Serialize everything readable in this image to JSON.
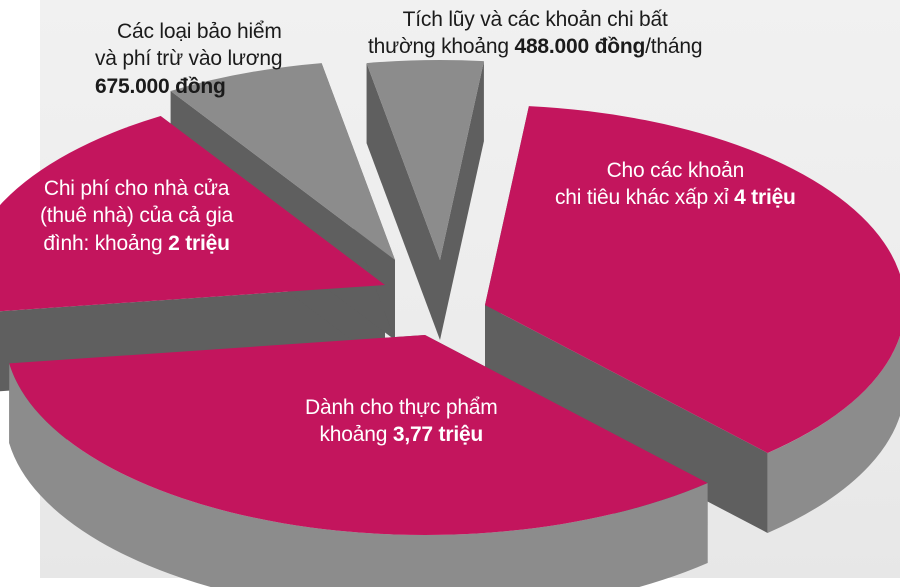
{
  "chart_data": {
    "type": "pie",
    "title": "",
    "colors": {
      "top": "#c3155d",
      "side": "#8c8c8c",
      "side_dark": "#5f5f5f",
      "background": "#ececec"
    },
    "slices": [
      {
        "key": "other",
        "value": 4000000,
        "lines": [
          "Cho các khoản",
          "chi tiêu khác xấp xỉ "
        ],
        "bold": "4 triệu",
        "bold_line": 1,
        "style": "top"
      },
      {
        "key": "food",
        "value": 3770000,
        "lines": [
          "Dành cho thực phẩm",
          "khoảng "
        ],
        "bold": "3,77 triệu",
        "bold_line": 1,
        "style": "top"
      },
      {
        "key": "housing",
        "value": 2000000,
        "lines": [
          "Chi phí cho nhà cửa",
          "(thuê nhà) của cả gia",
          "đình: khoảng "
        ],
        "bold": "2 triệu",
        "bold_line": 2,
        "style": "top"
      },
      {
        "key": "insurance",
        "value": 675000,
        "lines": [
          "Các loại bảo hiểm",
          "và phí trừ vào lương",
          ""
        ],
        "bold": "675.000 đồng",
        "bold_line": 2,
        "style": "side"
      },
      {
        "key": "savings",
        "value": 488000,
        "lines": [
          "Tích lũy và các khoản chi bất",
          "thường  khoảng "
        ],
        "bold": "488.000 đồng",
        "bold_line": 1,
        "suffix": "/tháng",
        "style": "side"
      }
    ]
  }
}
